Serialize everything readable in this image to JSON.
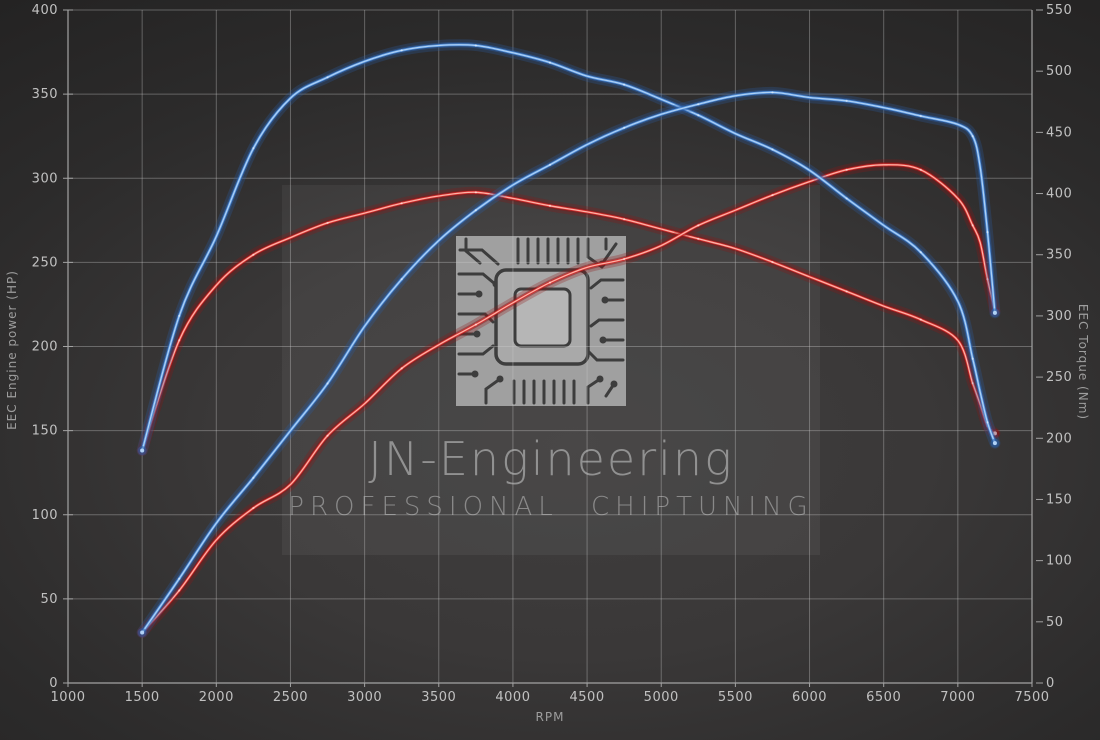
{
  "watermark": {
    "title": "JN-Engineering",
    "subtitle": "PROFESSIONAL CHIPTUNING",
    "chip_icon": "microchip-icon"
  },
  "chart_data": {
    "type": "line",
    "title": "",
    "xlabel": "RPM",
    "ylabel_left": "EEC Engine power (HP)",
    "ylabel_right": "EEC Torque (Nm)",
    "xlim": [
      1000,
      7500
    ],
    "ylim_left": [
      0,
      400
    ],
    "ylim_right": [
      0,
      550
    ],
    "x_ticks": [
      1000,
      1500,
      2000,
      2500,
      3000,
      3500,
      4000,
      4500,
      5000,
      5500,
      6000,
      6500,
      7000,
      7500
    ],
    "y_left_ticks": [
      0,
      50,
      100,
      150,
      200,
      250,
      300,
      350,
      400
    ],
    "y_right_ticks": [
      0,
      50,
      100,
      150,
      200,
      250,
      300,
      350,
      400,
      450,
      500,
      550
    ],
    "grid": true,
    "legend": "none",
    "rpm": [
      1500,
      1750,
      2000,
      2250,
      2500,
      2750,
      3000,
      3250,
      3500,
      3750,
      4000,
      4250,
      4500,
      4750,
      5000,
      5250,
      5500,
      5750,
      6000,
      6250,
      6500,
      6750,
      7000,
      7100,
      7150,
      7200,
      7250
    ],
    "series": [
      {
        "id": "red_torque",
        "axis": "right",
        "color_body": "#d92b2b",
        "color_core": "#ffc0b2",
        "color_glow": "#8e1414",
        "values": [
          190,
          280,
          325,
          350,
          364,
          376,
          384,
          392,
          398,
          401,
          396,
          390,
          385,
          379,
          371,
          363,
          355,
          344,
          332,
          320,
          308,
          297,
          280,
          245,
          228,
          210,
          204
        ]
      },
      {
        "id": "red_power",
        "axis": "left",
        "color_body": "#d92b2b",
        "color_core": "#ffc0b2",
        "color_glow": "#8e1414",
        "values": [
          30,
          55,
          85,
          104,
          118,
          147,
          166,
          187,
          201,
          213,
          226,
          238,
          247,
          252,
          260,
          272,
          281,
          290,
          298,
          305,
          308,
          305,
          288,
          272,
          262,
          240,
          221
        ]
      },
      {
        "id": "blue_torque",
        "axis": "right",
        "color_body": "#4c8bd8",
        "color_core": "#b7d7f8",
        "color_glow": "#2a5ea6",
        "values": [
          190,
          300,
          365,
          437,
          478,
          495,
          508,
          517,
          521,
          521,
          515,
          507,
          496,
          489,
          477,
          464,
          449,
          436,
          419,
          396,
          374,
          352,
          312,
          265,
          238,
          213,
          196
        ]
      },
      {
        "id": "blue_power",
        "axis": "left",
        "color_body": "#4c8bd8",
        "color_core": "#b7d7f8",
        "color_glow": "#2a5ea6",
        "values": [
          30,
          62,
          95,
          122,
          150,
          178,
          212,
          240,
          263,
          281,
          296,
          308,
          320,
          330,
          338,
          344,
          349,
          351,
          348,
          346,
          342,
          337,
          332,
          325,
          307,
          268,
          220
        ]
      }
    ]
  }
}
